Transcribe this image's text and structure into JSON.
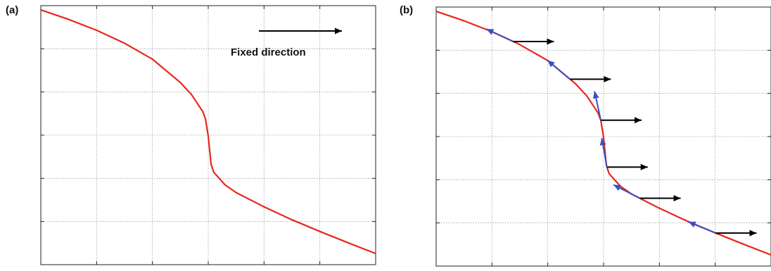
{
  "figure": {
    "panel_a_label": "(a)",
    "panel_b_label": "(b)",
    "panel_a_annotation": "Fixed direction"
  },
  "colors": {
    "curve": "#e8271d",
    "grid": "#9a9a9a",
    "axes": "#222222",
    "fixed_arrow": "#000000",
    "tangent_arrow": "#3a4ec4"
  },
  "chart_data": [
    {
      "type": "line",
      "panel": "(a)",
      "title": "",
      "xlabel": "",
      "ylabel": "",
      "xlim": [
        0,
        6
      ],
      "ylim": [
        0,
        6
      ],
      "grid": true,
      "legend": "none",
      "series": [
        {
          "x": [
            0,
            0.5,
            1.0,
            1.5,
            2.0,
            2.5,
            2.7,
            2.9,
            2.95,
            3.0,
            3.05,
            3.1,
            3.3,
            3.5,
            4.0,
            4.5,
            5.0,
            5.5,
            6.0
          ],
          "y": [
            5.9,
            5.68,
            5.43,
            5.13,
            4.76,
            4.22,
            3.94,
            3.55,
            3.38,
            2.98,
            2.33,
            2.14,
            1.85,
            1.67,
            1.34,
            1.04,
            0.77,
            0.51,
            0.26
          ]
        }
      ],
      "annotations": [
        {
          "text": "Fixed direction",
          "arrow_direction": "+x"
        }
      ]
    },
    {
      "type": "line",
      "panel": "(b)",
      "title": "",
      "xlabel": "",
      "ylabel": "",
      "xlim": [
        0,
        6
      ],
      "ylim": [
        0,
        6
      ],
      "grid": true,
      "legend": "none",
      "series": [
        {
          "x": [
            0,
            0.5,
            1.0,
            1.5,
            2.0,
            2.5,
            2.7,
            2.9,
            2.95,
            3.0,
            3.05,
            3.1,
            3.3,
            3.5,
            4.0,
            4.5,
            5.0,
            5.5,
            6.0
          ],
          "y": [
            5.9,
            5.68,
            5.43,
            5.13,
            4.76,
            4.22,
            3.94,
            3.55,
            3.38,
            2.98,
            2.33,
            2.14,
            1.85,
            1.67,
            1.34,
            1.04,
            0.77,
            0.51,
            0.26
          ]
        }
      ],
      "arrow_origins_x": [
        1.38,
        2.4,
        2.95,
        3.06,
        3.65,
        5.01
      ]
    }
  ]
}
